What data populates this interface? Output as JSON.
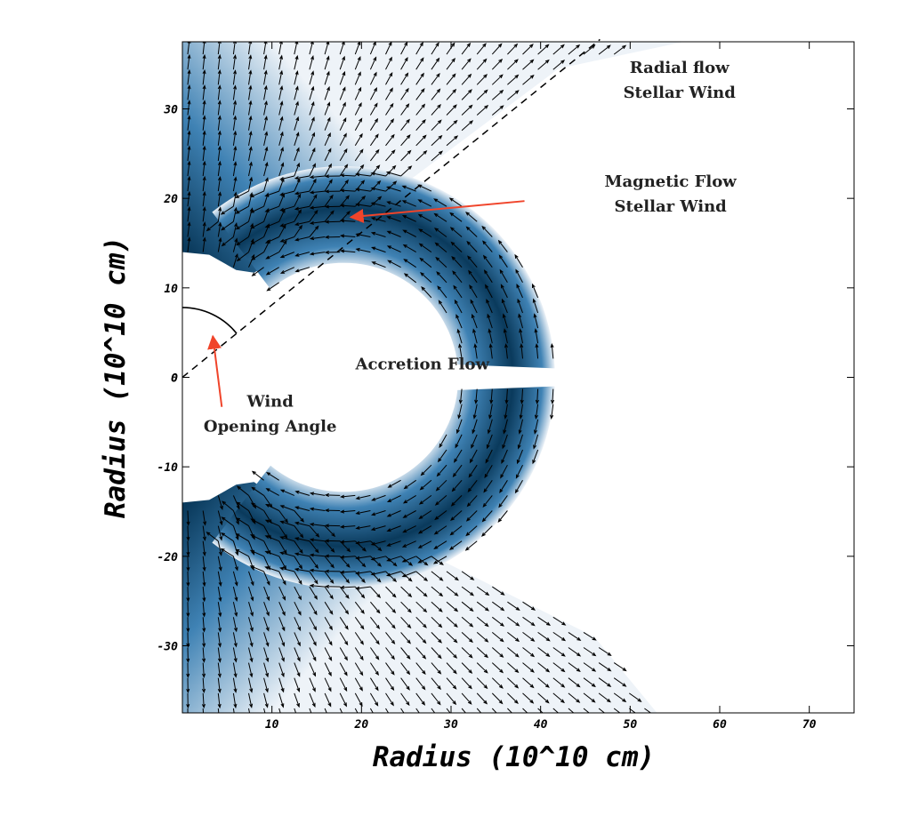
{
  "chart_data": {
    "type": "vector-field",
    "xlabel": "Radius (10^10 cm)",
    "ylabel": "Radius (10^10 cm)",
    "xlim": [
      0,
      75
    ],
    "ylim": [
      -37.5,
      37.5
    ],
    "xticks": [
      10,
      20,
      30,
      40,
      50,
      60,
      70
    ],
    "yticks": [
      -30,
      -20,
      -10,
      0,
      10,
      20,
      30
    ],
    "xtick_labels": [
      "10",
      "20",
      "30",
      "40",
      "50",
      "60",
      "70"
    ],
    "ytick_labels": [
      "-30",
      "-20",
      "-10",
      "0",
      "10",
      "20",
      "30"
    ],
    "origin_label": "0",
    "colormap": {
      "high": "#0a3a5c",
      "mid": "#3f82b4",
      "low": "#eef3f8"
    },
    "annotation_color": "#f0442a",
    "wind_opening_angle_deg": 51,
    "regions": {
      "radial_wind": {
        "r_min": 29,
        "r_max": 60
      },
      "magnetic_wind": {
        "star_radius": 14,
        "outer_radius": 36
      },
      "accretion_flow": {
        "center_x": 18,
        "r_inner": 12.8,
        "r_outer": 23.6,
        "half_gap": 1
      }
    },
    "annotations": [
      {
        "id": "radial",
        "lines": [
          "Radial flow",
          "Stellar Wind"
        ],
        "x": 55.5,
        "y": 34.0
      },
      {
        "id": "magnetic",
        "lines": [
          "Magnetic Flow",
          "Stellar Wind"
        ],
        "x": 54.5,
        "y": 21.3,
        "arrow_from": [
          38.2,
          19.7
        ],
        "arrow_to": [
          18.8,
          17.9
        ]
      },
      {
        "id": "accretion",
        "lines": [
          "Accretion Flow"
        ],
        "x": 26.8,
        "y": 0.9
      },
      {
        "id": "opening",
        "lines": [
          "Wind",
          "Opening Angle"
        ],
        "x": 9.8,
        "y": -3.3,
        "arrow_from": [
          4.4,
          -3.3
        ],
        "arrow_to": [
          3.4,
          4.6
        ]
      }
    ]
  }
}
